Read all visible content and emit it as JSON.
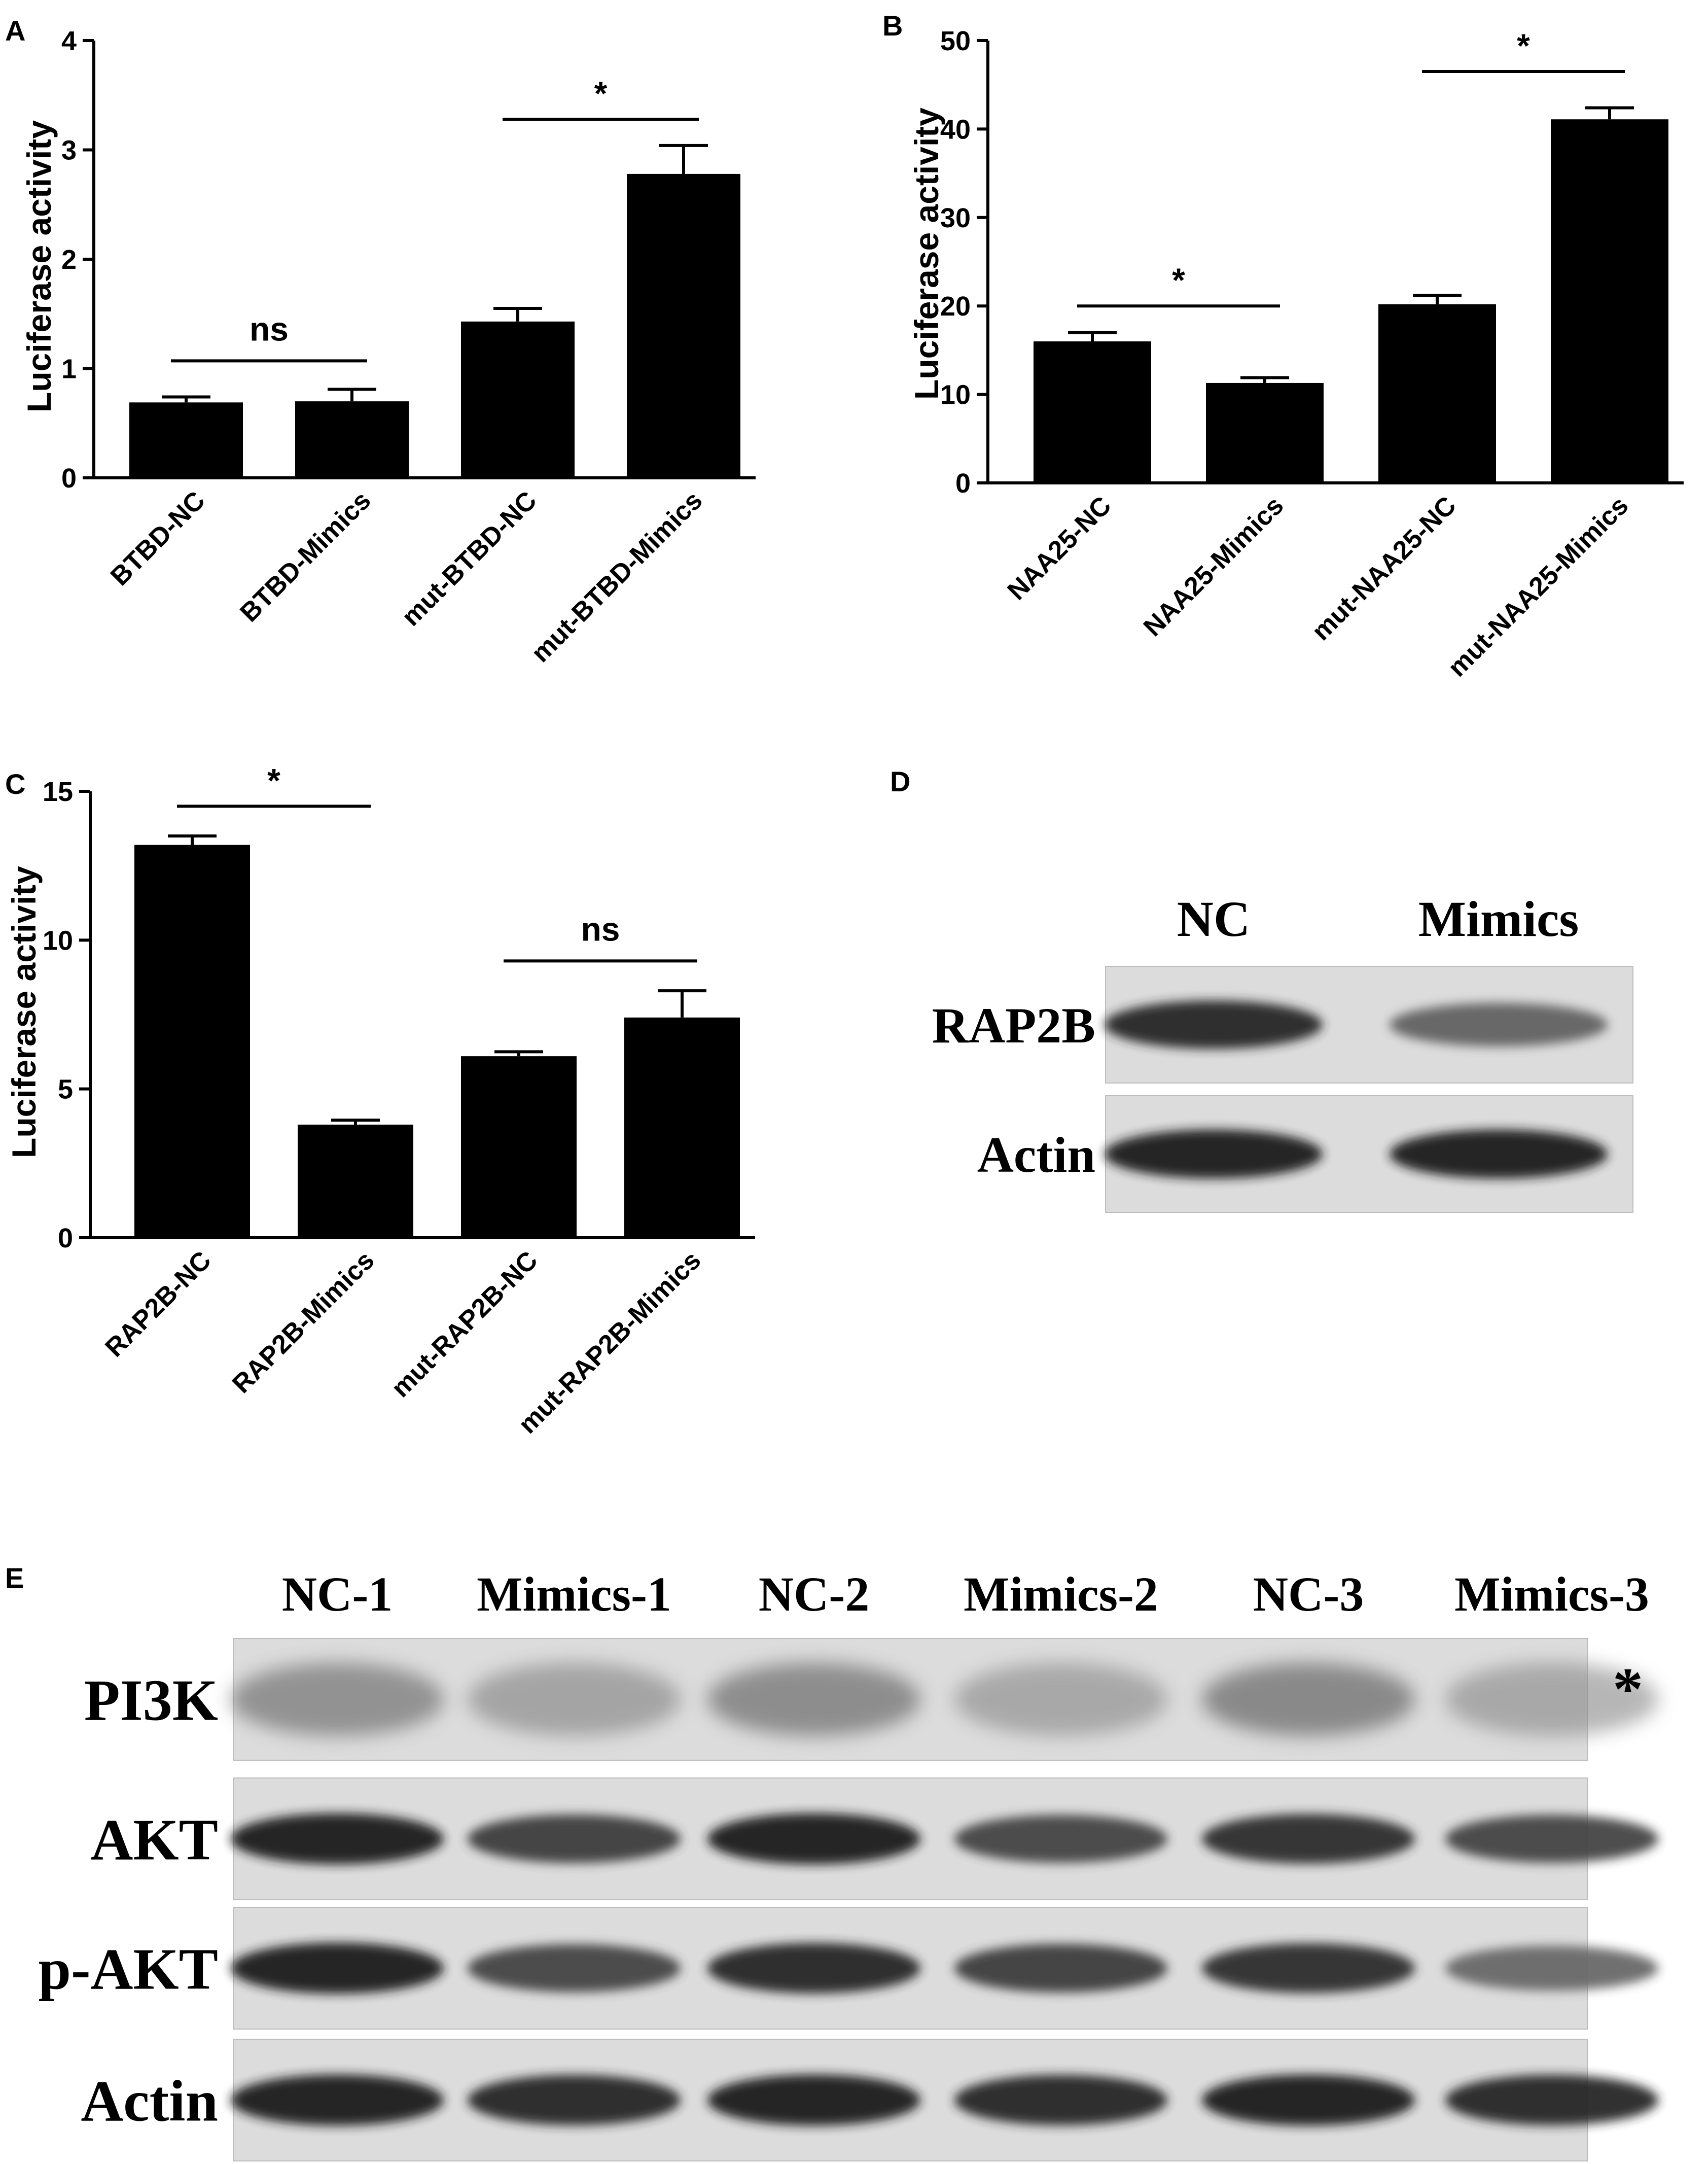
{
  "figure": {
    "panel_letters": [
      "A",
      "B",
      "C",
      "D",
      "E"
    ]
  },
  "chart_data": [
    {
      "panel": "A",
      "type": "bar",
      "ylabel": "Luciferase activity",
      "ylim": [
        0,
        4
      ],
      "yticks": [
        0,
        1,
        2,
        3,
        4
      ],
      "categories": [
        "BTBD-NC",
        "BTBD-Mimics",
        "mut-BTBD-NC",
        "mut-BTBD-Mimics"
      ],
      "values": [
        0.69,
        0.7,
        1.43,
        2.78
      ],
      "errors": [
        0.05,
        0.11,
        0.12,
        0.26
      ],
      "significance": [
        {
          "from": 0,
          "to": 1,
          "label": "ns",
          "level": 1.07
        },
        {
          "from": 2,
          "to": 3,
          "label": "*",
          "level": 3.28
        }
      ]
    },
    {
      "panel": "B",
      "type": "bar",
      "ylabel": "Luciferase activity",
      "ylim": [
        0,
        50
      ],
      "yticks": [
        0,
        10,
        20,
        30,
        40,
        50
      ],
      "categories": [
        "NAA25-NC",
        "NAA25-Mimics",
        "mut-NAA25-NC",
        "mut-NAA25-Mimics"
      ],
      "values": [
        16.0,
        11.3,
        20.2,
        41.1
      ],
      "errors": [
        1.0,
        0.6,
        1.0,
        1.3
      ],
      "significance": [
        {
          "from": 0,
          "to": 1,
          "label": "*",
          "level": 20.0
        },
        {
          "from": 2,
          "to": 3,
          "label": "*",
          "level": 46.5
        }
      ]
    },
    {
      "panel": "C",
      "type": "bar",
      "ylabel": "Luciferase activity",
      "ylim": [
        0,
        15
      ],
      "yticks": [
        0,
        5,
        10,
        15
      ],
      "categories": [
        "RAP2B-NC",
        "RAP2B-Mimics",
        "mut-RAP2B-NC",
        "mut-RAP2B-Mimics"
      ],
      "values": [
        13.2,
        3.8,
        6.1,
        7.4
      ],
      "errors": [
        0.3,
        0.15,
        0.15,
        0.9
      ],
      "significance": [
        {
          "from": 0,
          "to": 1,
          "label": "*",
          "level": 14.5
        },
        {
          "from": 2,
          "to": 3,
          "label": "ns",
          "level": 9.3
        }
      ]
    }
  ],
  "blot_d": {
    "lanes": [
      "NC",
      "Mimics"
    ],
    "rows": [
      {
        "label": "RAP2B",
        "intensity": [
          0.95,
          0.55
        ]
      },
      {
        "label": "Actin",
        "intensity": [
          1.0,
          1.0
        ]
      }
    ]
  },
  "blot_e": {
    "lanes": [
      "NC-1",
      "Mimics-1",
      "NC-2",
      "Mimics-2",
      "NC-3",
      "Mimics-3"
    ],
    "rows": [
      {
        "label": "PI3K",
        "intensity": [
          0.55,
          0.35,
          0.6,
          0.3,
          0.65,
          0.3
        ]
      },
      {
        "label": "AKT",
        "intensity": [
          1.0,
          0.8,
          1.0,
          0.75,
          0.9,
          0.75
        ]
      },
      {
        "label": "p-AKT",
        "intensity": [
          1.0,
          0.75,
          0.95,
          0.8,
          0.9,
          0.5
        ]
      },
      {
        "label": "Actin",
        "intensity": [
          1.0,
          0.95,
          1.0,
          0.95,
          1.0,
          0.95
        ]
      }
    ],
    "marker": "*"
  }
}
